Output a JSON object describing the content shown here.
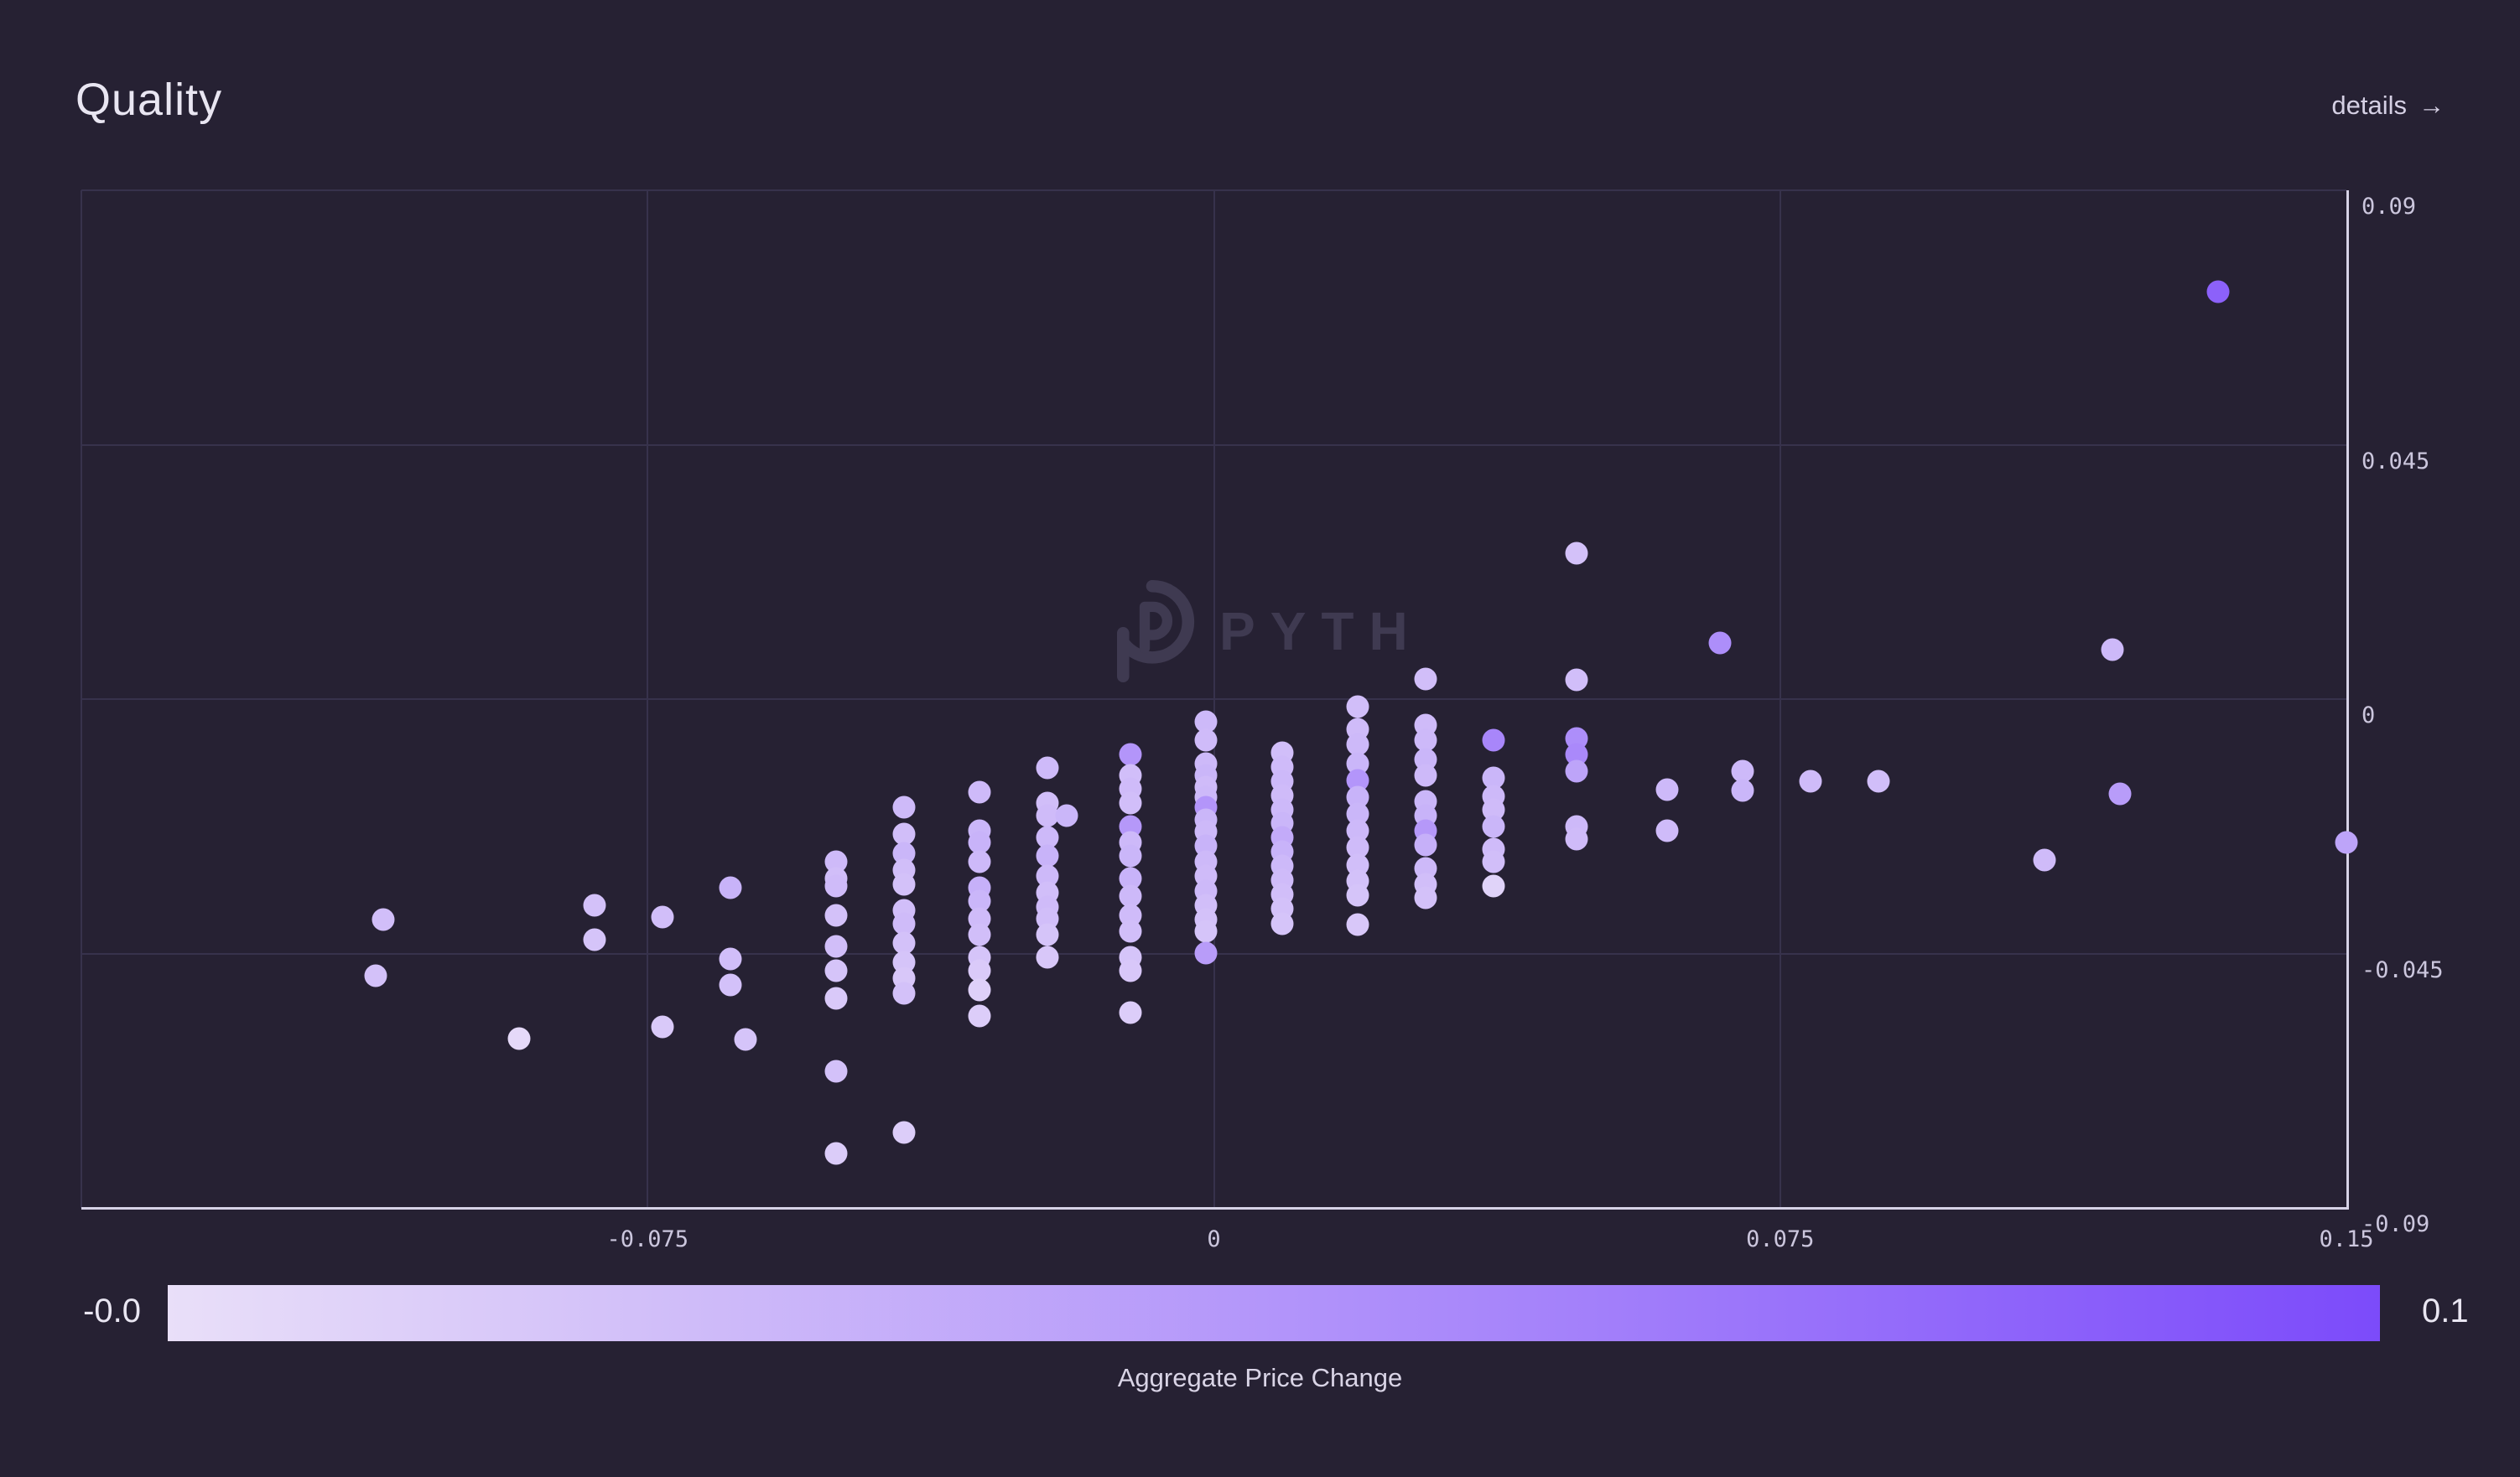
{
  "header": {
    "title": "Quality",
    "details_label": "details",
    "details_arrow": "→"
  },
  "watermark": {
    "text": "PYTH"
  },
  "colors": {
    "background": "#262133",
    "gridline": "#37324c",
    "axis_line": "#d6d2e6",
    "tick_label": "#cbc6dd",
    "title": "#e9e6f2",
    "details_link": "#d5d0e4",
    "watermark": "#423d55",
    "point_low": "#e9dff9",
    "point_high": "#7c4bfa"
  },
  "chart_data": {
    "type": "scatter",
    "title": "Quality",
    "xlabel": "",
    "ylabel": "",
    "xlim": [
      -0.15,
      0.15
    ],
    "ylim": [
      -0.09,
      0.09
    ],
    "grid": {
      "x_values": [
        -0.15,
        -0.075,
        0,
        0.075
      ],
      "y_values": [
        0.09,
        0.045,
        0,
        -0.045
      ]
    },
    "axis_lines": {
      "bottom_y": -0.09,
      "right_x": 0.15
    },
    "x_ticks": [
      {
        "v": -0.075,
        "label": "-0.075"
      },
      {
        "v": 0,
        "label": "0"
      },
      {
        "v": 0.075,
        "label": "0.075"
      },
      {
        "v": 0.15,
        "label": "0.15"
      }
    ],
    "y_ticks": [
      {
        "v": 0.09,
        "label": "0.09"
      },
      {
        "v": 0.045,
        "label": "0.045"
      },
      {
        "v": 0,
        "label": "0"
      },
      {
        "v": -0.045,
        "label": "-0.045"
      },
      {
        "v": -0.09,
        "label": "-0.09"
      }
    ],
    "colorbar": {
      "min": 0,
      "max": 0.1,
      "min_label": "-0.0",
      "max_label": "0.1",
      "title": "Aggregate Price Change",
      "start_color": "#e9dff9",
      "end_color": "#7c4bfa"
    },
    "points_format": [
      "x",
      "y",
      "aggregate_price_change"
    ],
    "points": [
      [
        -0.11,
        -0.039,
        0.022
      ],
      [
        -0.111,
        -0.049,
        0.02
      ],
      [
        -0.092,
        -0.06,
        0.004
      ],
      [
        -0.082,
        -0.0365,
        0.02
      ],
      [
        -0.082,
        -0.0425,
        0.018
      ],
      [
        -0.073,
        -0.0385,
        0.022
      ],
      [
        -0.073,
        -0.058,
        0.015
      ],
      [
        -0.064,
        -0.0333,
        0.03
      ],
      [
        -0.064,
        -0.046,
        0.022
      ],
      [
        -0.064,
        -0.0505,
        0.02
      ],
      [
        -0.062,
        -0.0602,
        0.018
      ],
      [
        -0.05,
        -0.0288,
        0.025
      ],
      [
        -0.05,
        -0.0318,
        0.022
      ],
      [
        -0.05,
        -0.033,
        0.024
      ],
      [
        -0.05,
        -0.0382,
        0.02
      ],
      [
        -0.05,
        -0.0437,
        0.022
      ],
      [
        -0.05,
        -0.0481,
        0.018
      ],
      [
        -0.05,
        -0.053,
        0.015
      ],
      [
        -0.05,
        -0.0658,
        0.02
      ],
      [
        -0.05,
        -0.0803,
        0.013
      ],
      [
        -0.041,
        -0.0192,
        0.025
      ],
      [
        -0.041,
        -0.0239,
        0.022
      ],
      [
        -0.041,
        -0.0273,
        0.028
      ],
      [
        -0.041,
        -0.0303,
        0.022
      ],
      [
        -0.041,
        -0.0328,
        0.02
      ],
      [
        -0.041,
        -0.0374,
        0.022
      ],
      [
        -0.041,
        -0.0397,
        0.024
      ],
      [
        -0.041,
        -0.0432,
        0.02
      ],
      [
        -0.041,
        -0.0466,
        0.018
      ],
      [
        -0.041,
        -0.0493,
        0.016
      ],
      [
        -0.041,
        -0.0521,
        0.02
      ],
      [
        -0.041,
        -0.0766,
        0.012
      ],
      [
        -0.031,
        -0.0165,
        0.025
      ],
      [
        -0.031,
        -0.0233,
        0.028
      ],
      [
        -0.031,
        -0.0254,
        0.03
      ],
      [
        -0.031,
        -0.0288,
        0.026
      ],
      [
        -0.031,
        -0.0333,
        0.032
      ],
      [
        -0.031,
        -0.0358,
        0.028
      ],
      [
        -0.031,
        -0.0388,
        0.024
      ],
      [
        -0.031,
        -0.0417,
        0.022
      ],
      [
        -0.031,
        -0.0456,
        0.018
      ],
      [
        -0.031,
        -0.0481,
        0.014
      ],
      [
        -0.031,
        -0.0515,
        0.01
      ],
      [
        -0.031,
        -0.056,
        0.012
      ],
      [
        -0.022,
        -0.0122,
        0.025
      ],
      [
        -0.022,
        -0.0184,
        0.022
      ],
      [
        -0.022,
        -0.0206,
        0.024
      ],
      [
        -0.0195,
        -0.0206,
        0.028
      ],
      [
        -0.022,
        -0.0244,
        0.026
      ],
      [
        -0.022,
        -0.0278,
        0.03
      ],
      [
        -0.022,
        -0.0313,
        0.026
      ],
      [
        -0.022,
        -0.0343,
        0.022
      ],
      [
        -0.022,
        -0.0367,
        0.024
      ],
      [
        -0.022,
        -0.0388,
        0.022
      ],
      [
        -0.022,
        -0.0417,
        0.018
      ],
      [
        -0.022,
        -0.0456,
        0.016
      ],
      [
        -0.011,
        -0.0098,
        0.05
      ],
      [
        -0.011,
        -0.0135,
        0.022
      ],
      [
        -0.011,
        -0.0159,
        0.024
      ],
      [
        -0.011,
        -0.0184,
        0.022
      ],
      [
        -0.011,
        -0.0226,
        0.048
      ],
      [
        -0.011,
        -0.0254,
        0.026
      ],
      [
        -0.011,
        -0.0278,
        0.028
      ],
      [
        -0.011,
        -0.0318,
        0.03
      ],
      [
        -0.011,
        -0.0348,
        0.026
      ],
      [
        -0.011,
        -0.0382,
        0.024
      ],
      [
        -0.011,
        -0.0411,
        0.022
      ],
      [
        -0.011,
        -0.0456,
        0.018
      ],
      [
        -0.011,
        -0.0481,
        0.016
      ],
      [
        -0.011,
        -0.0555,
        0.012
      ],
      [
        -0.001,
        -0.004,
        0.026
      ],
      [
        -0.001,
        -0.0073,
        0.024
      ],
      [
        -0.001,
        -0.0114,
        0.026
      ],
      [
        -0.001,
        -0.0135,
        0.028
      ],
      [
        -0.001,
        -0.0155,
        0.024
      ],
      [
        -0.001,
        -0.0174,
        0.026
      ],
      [
        -0.001,
        -0.0192,
        0.05
      ],
      [
        -0.001,
        -0.0214,
        0.028
      ],
      [
        -0.001,
        -0.0235,
        0.026
      ],
      [
        -0.001,
        -0.026,
        0.03
      ],
      [
        -0.001,
        -0.0288,
        0.026
      ],
      [
        -0.001,
        -0.0313,
        0.024
      ],
      [
        -0.001,
        -0.034,
        0.026
      ],
      [
        -0.001,
        -0.0365,
        0.022
      ],
      [
        -0.001,
        -0.039,
        0.02
      ],
      [
        -0.001,
        -0.0411,
        0.018
      ],
      [
        -0.001,
        -0.0449,
        0.045
      ],
      [
        0.009,
        -0.0095,
        0.022
      ],
      [
        0.009,
        -0.012,
        0.024
      ],
      [
        0.009,
        -0.0145,
        0.026
      ],
      [
        0.009,
        -0.017,
        0.024
      ],
      [
        0.009,
        -0.0195,
        0.026
      ],
      [
        0.009,
        -0.022,
        0.028
      ],
      [
        0.009,
        -0.0245,
        0.035
      ],
      [
        0.009,
        -0.027,
        0.03
      ],
      [
        0.009,
        -0.0295,
        0.026
      ],
      [
        0.009,
        -0.032,
        0.024
      ],
      [
        0.009,
        -0.0345,
        0.022
      ],
      [
        0.009,
        -0.037,
        0.02
      ],
      [
        0.009,
        -0.0397,
        0.018
      ],
      [
        0.019,
        -0.0013,
        0.022
      ],
      [
        0.019,
        -0.0053,
        0.024
      ],
      [
        0.019,
        -0.008,
        0.026
      ],
      [
        0.019,
        -0.0114,
        0.028
      ],
      [
        0.019,
        -0.0144,
        0.05
      ],
      [
        0.019,
        -0.0174,
        0.03
      ],
      [
        0.019,
        -0.0203,
        0.028
      ],
      [
        0.019,
        -0.0233,
        0.026
      ],
      [
        0.019,
        -0.0263,
        0.024
      ],
      [
        0.019,
        -0.0293,
        0.022
      ],
      [
        0.019,
        -0.0322,
        0.02
      ],
      [
        0.019,
        -0.0347,
        0.018
      ],
      [
        0.019,
        -0.0399,
        0.016
      ],
      [
        0.028,
        0.0036,
        0.022
      ],
      [
        0.028,
        -0.0046,
        0.024
      ],
      [
        0.028,
        -0.0073,
        0.026
      ],
      [
        0.028,
        -0.0107,
        0.028
      ],
      [
        0.028,
        -0.0135,
        0.026
      ],
      [
        0.028,
        -0.0181,
        0.028
      ],
      [
        0.028,
        -0.0206,
        0.03
      ],
      [
        0.028,
        -0.0233,
        0.048
      ],
      [
        0.028,
        -0.0258,
        0.032
      ],
      [
        0.028,
        -0.03,
        0.026
      ],
      [
        0.028,
        -0.0328,
        0.022
      ],
      [
        0.028,
        -0.0352,
        0.02
      ],
      [
        0.037,
        -0.0073,
        0.06
      ],
      [
        0.037,
        -0.014,
        0.028
      ],
      [
        0.037,
        -0.0172,
        0.026
      ],
      [
        0.037,
        -0.0195,
        0.024
      ],
      [
        0.037,
        -0.0226,
        0.028
      ],
      [
        0.037,
        -0.0266,
        0.024
      ],
      [
        0.037,
        -0.0288,
        0.022
      ],
      [
        0.037,
        -0.033,
        0.008
      ],
      [
        0.048,
        0.0258,
        0.02
      ],
      [
        0.048,
        0.0034,
        0.022
      ],
      [
        0.048,
        -0.007,
        0.055
      ],
      [
        0.048,
        -0.0098,
        0.058
      ],
      [
        0.048,
        -0.0128,
        0.04
      ],
      [
        0.048,
        -0.0226,
        0.026
      ],
      [
        0.048,
        -0.0247,
        0.024
      ],
      [
        0.06,
        -0.016,
        0.026
      ],
      [
        0.06,
        -0.0233,
        0.024
      ],
      [
        0.067,
        0.0099,
        0.055
      ],
      [
        0.07,
        -0.0128,
        0.026
      ],
      [
        0.07,
        -0.0162,
        0.028
      ],
      [
        0.079,
        -0.0146,
        0.024
      ],
      [
        0.088,
        -0.0146,
        0.022
      ],
      [
        0.11,
        -0.0285,
        0.024
      ],
      [
        0.119,
        0.0088,
        0.026
      ],
      [
        0.12,
        -0.0168,
        0.045
      ],
      [
        0.133,
        0.072,
        0.085
      ],
      [
        0.15,
        -0.0254,
        0.04
      ]
    ]
  }
}
